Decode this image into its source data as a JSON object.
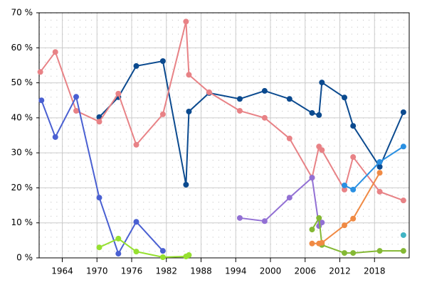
{
  "chart_data": {
    "type": "line",
    "xlim": [
      1960,
      2024
    ],
    "xticks": [
      1964,
      1970,
      1976,
      1982,
      1988,
      1994,
      2000,
      2006,
      2012,
      2018
    ],
    "ylim": [
      0,
      70
    ],
    "yticks": [
      {
        "value": 0,
        "label": "0 %"
      },
      {
        "value": 10,
        "label": "10 %"
      },
      {
        "value": 20,
        "label": "20 %"
      },
      {
        "value": 30,
        "label": "30 %"
      },
      {
        "value": 40,
        "label": "40 %"
      },
      {
        "value": 50,
        "label": "50 %"
      },
      {
        "value": 60,
        "label": "60 %"
      },
      {
        "value": 70,
        "label": "70 %"
      }
    ],
    "grid": true,
    "series": [
      {
        "color": "#0b4a8f",
        "x": [
          1970.4,
          1973.7,
          1976.8,
          1981.4,
          1985.4,
          1985.9,
          1989.4,
          1994.7,
          1999,
          2003.3,
          2007.2,
          2008.4,
          2008.9,
          2012.8,
          2014.3,
          2018.9,
          2023
        ],
        "values": [
          40.2,
          45.9,
          54.8,
          56.2,
          20.9,
          41.8,
          47.1,
          45.4,
          47.7,
          45.4,
          41.4,
          40.8,
          50.1,
          45.8,
          37.7,
          26,
          41.6
        ]
      },
      {
        "color": "#e88286",
        "x": [
          1960.2,
          1962.8,
          1966.4,
          1970.4,
          1973.7,
          1976.8,
          1981.4,
          1985.4,
          1985.9,
          1989.4,
          1994.7,
          1999,
          2003.3,
          2007.2,
          2008.4,
          2008.9,
          2012.8,
          2014.3,
          2018.9,
          2023
        ],
        "values": [
          53.1,
          58.8,
          42,
          38.9,
          46.9,
          32.3,
          41,
          67.5,
          52.3,
          47.3,
          42,
          40,
          34.1,
          22.9,
          31.8,
          30.8,
          19.5,
          28.8,
          18.9,
          16.4
        ]
      },
      {
        "color": "#4a60d2",
        "x": [
          1960.4,
          1962.8,
          1966.4,
          1970.4,
          1973.7,
          1976.8,
          1981.4
        ],
        "values": [
          45,
          34.5,
          46,
          17.2,
          1.2,
          10.3,
          2
        ]
      },
      {
        "color": "#9270d4",
        "x": [
          1994.7,
          1999,
          2003.3,
          2007.2,
          2008.4,
          2008.9
        ],
        "values": [
          11.4,
          10.5,
          17.2,
          22.9,
          9.1,
          10.1
        ]
      },
      {
        "color": "#96e030",
        "x": [
          1970.4,
          1973.7,
          1976.8,
          1981.4,
          1985.4,
          1985.9
        ],
        "values": [
          3,
          5.5,
          1.8,
          0.2,
          0.4,
          0.8
        ]
      },
      {
        "color": "#84b834",
        "x": [
          2007.2,
          2008.4,
          2008.9,
          2012.8,
          2014.3,
          2018.9,
          2023
        ],
        "values": [
          8.1,
          11.4,
          3.7,
          1.4,
          1.4,
          2,
          2
        ]
      },
      {
        "color": "#f08a44",
        "x": [
          2007.2,
          2008.4,
          2008.9,
          2012.8,
          2014.3,
          2018.9
        ],
        "values": [
          4.1,
          4.1,
          4.3,
          9.3,
          11.2,
          24.3
        ]
      },
      {
        "color": "#2a90e2",
        "x": [
          2012.8,
          2014.3,
          2018.9,
          2023
        ],
        "values": [
          20.7,
          19.5,
          27.4,
          31.8
        ]
      },
      {
        "color": "#40b4c4",
        "x": [
          2023
        ],
        "values": [
          6.5
        ]
      }
    ]
  }
}
